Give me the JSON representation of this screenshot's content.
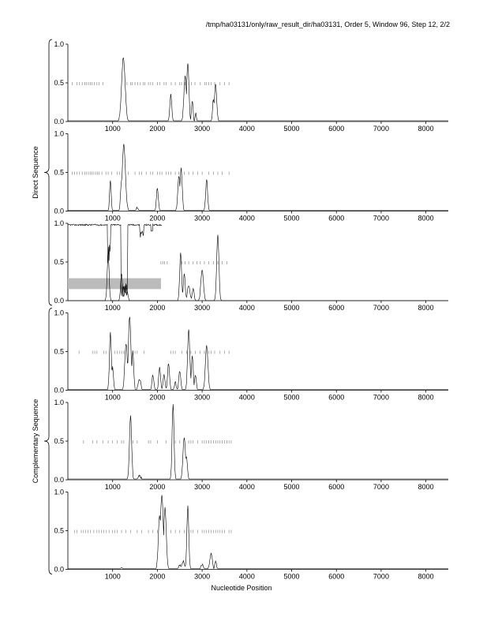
{
  "header": "/tmp/ha03131/only/raw_result_dir/ha03131, Order 5, Window 96, Step 12, 2/2",
  "chart_data": {
    "type": "line",
    "xlabel": "Nucleotide Position",
    "xlim": [
      0,
      8500
    ],
    "xticks": [
      1000,
      2000,
      3000,
      4000,
      5000,
      6000,
      7000,
      8000
    ],
    "ylim": [
      0,
      1
    ],
    "yticks": [
      "0.0",
      "0.5",
      "1.0"
    ],
    "groups": [
      {
        "label": "Direct Sequence",
        "panels": [
          0,
          1,
          2
        ]
      },
      {
        "label": "Complementary Sequence",
        "panels": [
          3,
          4,
          5
        ]
      }
    ],
    "panels": [
      {
        "peaks": [
          [
            1240,
            0.82,
            55
          ],
          [
            2300,
            0.35,
            30
          ],
          [
            2620,
            0.58,
            40
          ],
          [
            2680,
            0.76,
            35
          ],
          [
            2780,
            0.26,
            25
          ],
          [
            2860,
            0.1,
            20
          ],
          [
            3300,
            0.48,
            35
          ],
          [
            3250,
            0.3,
            25
          ]
        ],
        "baseline": 0.01,
        "marker_y": 0.49,
        "markers": [
          100,
          200,
          260,
          320,
          380,
          420,
          460,
          500,
          540,
          590,
          650,
          700,
          780,
          1320,
          1400,
          1440,
          1500,
          1560,
          1620,
          1680,
          1720,
          1800,
          1850,
          1900,
          2000,
          2050,
          2150,
          2200,
          2310,
          2400,
          2500,
          2540,
          2620,
          2700,
          2760,
          2840,
          2960,
          3060,
          3100,
          3150,
          3200,
          3280,
          3400,
          3500,
          3600
        ]
      },
      {
        "peaks": [
          [
            950,
            0.4,
            25
          ],
          [
            1250,
            0.86,
            50
          ],
          [
            1200,
            0.4,
            30
          ],
          [
            1550,
            0.05,
            30
          ],
          [
            2000,
            0.3,
            30
          ],
          [
            2480,
            0.45,
            35
          ],
          [
            2530,
            0.55,
            35
          ],
          [
            3100,
            0.41,
            30
          ]
        ],
        "baseline": 0.01,
        "marker_y": 0.49,
        "markers": [
          100,
          150,
          200,
          260,
          320,
          380,
          420,
          460,
          500,
          540,
          580,
          620,
          660,
          700,
          760,
          850,
          900,
          980,
          1100,
          1150,
          1350,
          1500,
          1600,
          1650,
          1750,
          1850,
          1900,
          2000,
          2050,
          2100,
          2200,
          2250,
          2300,
          2400,
          2480,
          2600,
          2700,
          2800,
          2900,
          3000,
          3150,
          3250,
          3350,
          3450,
          3600
        ]
      },
      {
        "peaks": [
          [
            900,
            0.6,
            30
          ],
          [
            1200,
            0.35,
            30
          ],
          [
            1300,
            0.2,
            40
          ],
          [
            2520,
            0.62,
            30
          ],
          [
            2600,
            0.35,
            30
          ],
          [
            2700,
            0.2,
            40
          ],
          [
            2800,
            0.15,
            30
          ],
          [
            3000,
            0.4,
            40
          ],
          [
            3350,
            0.86,
            35
          ]
        ],
        "baseline": 0.0,
        "top_trace": true,
        "shaded_band": {
          "x": [
            0,
            2080
          ],
          "y": [
            0.15,
            0.29
          ],
          "color": "#bbbbbb"
        },
        "marker_y": 0.49,
        "markers": [
          2080,
          2120,
          2160,
          2220,
          2550,
          2620,
          2700,
          2800,
          2880,
          2960,
          3050,
          3150,
          3250,
          3350,
          3450,
          3550
        ]
      },
      {
        "peaks": [
          [
            950,
            0.75,
            30
          ],
          [
            1000,
            0.3,
            25
          ],
          [
            1300,
            0.6,
            40
          ],
          [
            1380,
            0.96,
            40
          ],
          [
            1450,
            0.5,
            30
          ],
          [
            1600,
            0.15,
            40
          ],
          [
            1900,
            0.2,
            30
          ],
          [
            2050,
            0.3,
            30
          ],
          [
            2150,
            0.2,
            30
          ],
          [
            2250,
            0.35,
            30
          ],
          [
            2400,
            0.1,
            30
          ],
          [
            2500,
            0.25,
            30
          ],
          [
            2700,
            0.78,
            35
          ],
          [
            2780,
            0.45,
            30
          ],
          [
            2850,
            0.2,
            30
          ],
          [
            3100,
            0.58,
            40
          ]
        ],
        "baseline": 0.01,
        "marker_y": 0.49,
        "markers": [
          250,
          550,
          600,
          650,
          800,
          850,
          1050,
          1100,
          1150,
          1200,
          1250,
          1500,
          1550,
          1700,
          2300,
          2350,
          2400,
          2550,
          2650,
          2750,
          2850,
          2950,
          3050,
          3150,
          3200,
          3280,
          3400,
          3500,
          3600
        ]
      },
      {
        "peaks": [
          [
            1400,
            0.82,
            35
          ],
          [
            1600,
            0.06,
            40
          ],
          [
            2350,
            0.98,
            30
          ],
          [
            2600,
            0.55,
            40
          ],
          [
            2650,
            0.3,
            30
          ]
        ],
        "baseline": 0.01,
        "marker_y": 0.49,
        "markers": [
          350,
          550,
          650,
          780,
          900,
          1000,
          1100,
          1200,
          1250,
          1450,
          1550,
          1800,
          1850,
          2000,
          2200,
          2400,
          2500,
          2700,
          2750,
          2800,
          2900,
          3000,
          3050,
          3100,
          3150,
          3200,
          3250,
          3300,
          3350,
          3400,
          3450,
          3500,
          3550,
          3600,
          3650
        ]
      },
      {
        "peaks": [
          [
            1200,
            0.02,
            40
          ],
          [
            2050,
            0.7,
            40
          ],
          [
            2100,
            0.97,
            45
          ],
          [
            2170,
            0.8,
            40
          ],
          [
            2500,
            0.05,
            40
          ],
          [
            2580,
            0.1,
            40
          ],
          [
            2680,
            0.82,
            30
          ],
          [
            3000,
            0.06,
            40
          ],
          [
            3200,
            0.2,
            40
          ],
          [
            3300,
            0.1,
            30
          ]
        ],
        "baseline": 0.01,
        "marker_y": 0.49,
        "markers": [
          150,
          200,
          300,
          350,
          400,
          450,
          500,
          580,
          650,
          700,
          750,
          800,
          860,
          920,
          1000,
          1050,
          1100,
          1200,
          1300,
          1400,
          1550,
          1650,
          1800,
          1900,
          2000,
          2300,
          2400,
          2500,
          2600,
          2700,
          2750,
          2800,
          2900,
          3000,
          3050,
          3100,
          3150,
          3200,
          3250,
          3300,
          3350,
          3400,
          3450,
          3500,
          3600,
          3650
        ]
      }
    ]
  }
}
